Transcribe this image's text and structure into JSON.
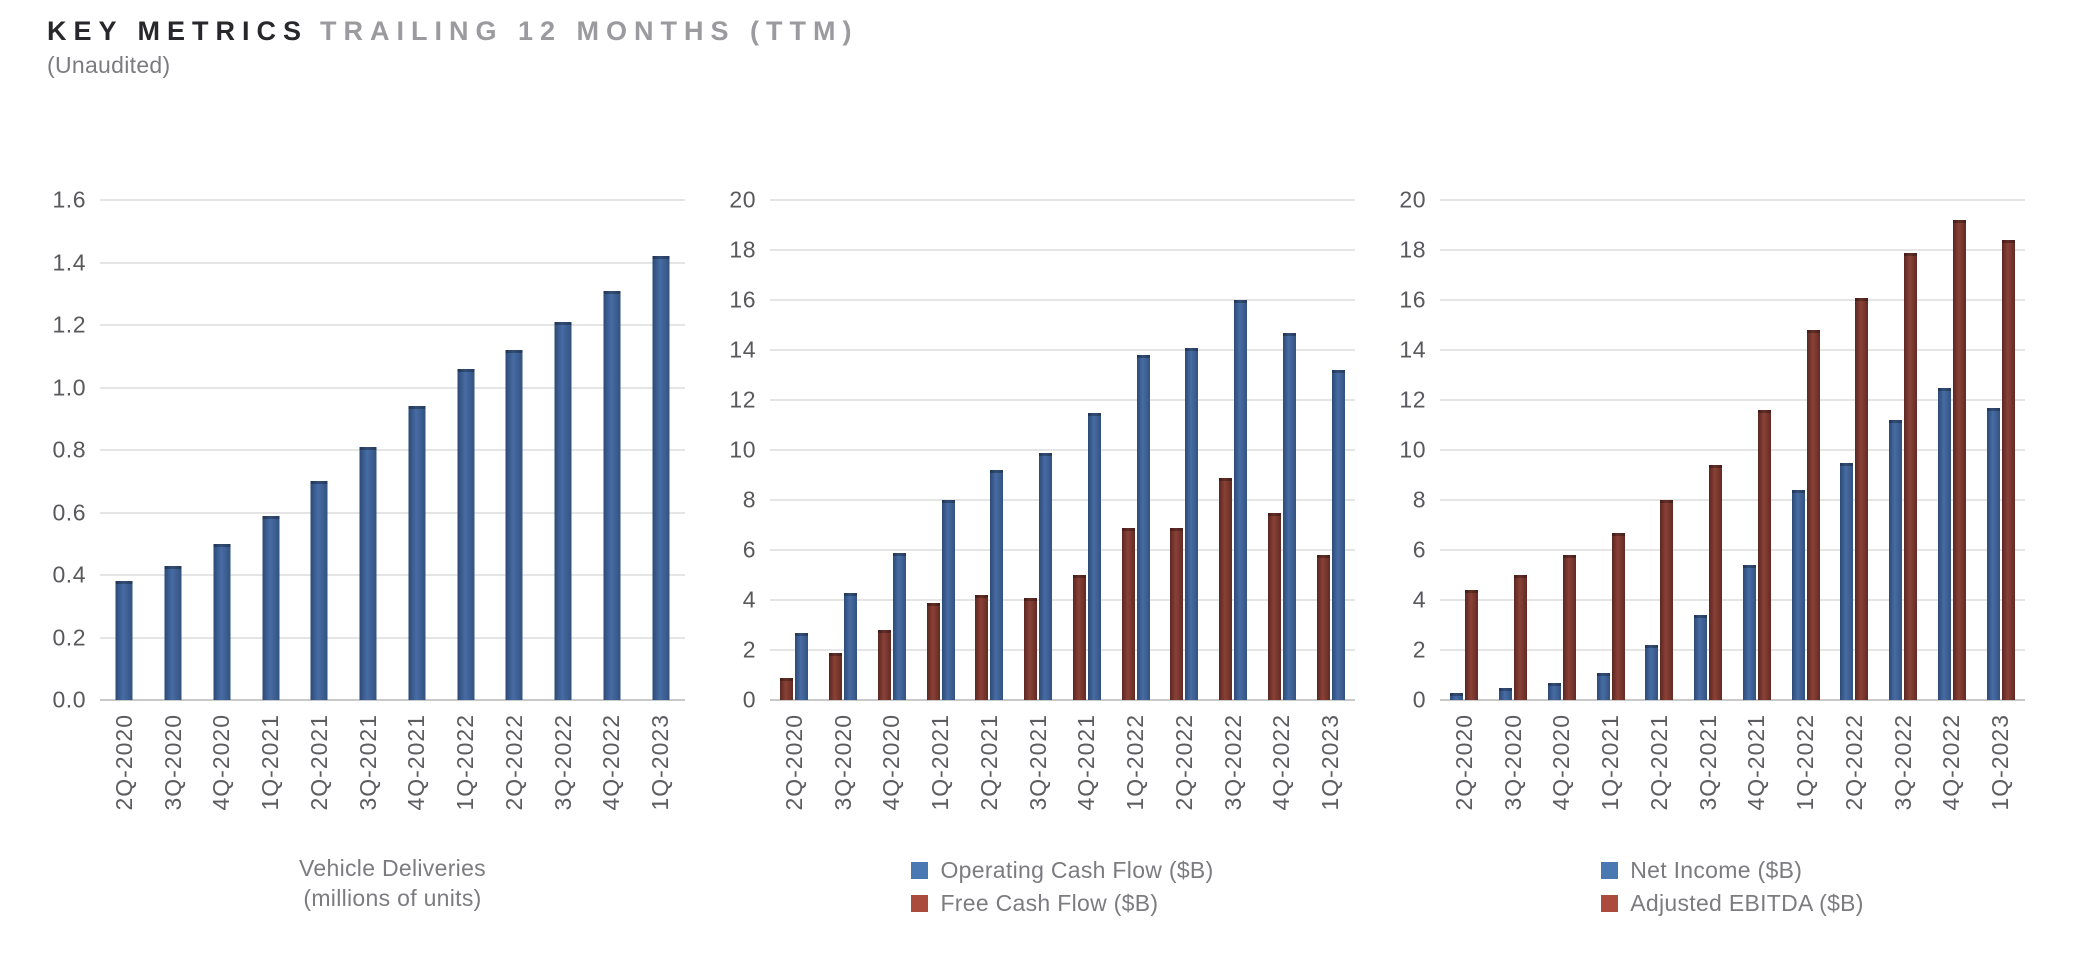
{
  "header": {
    "title_primary": "KEY METRICS",
    "title_secondary": "TRAILING 12 MONTHS (TTM)",
    "subtitle": "(Unaudited)"
  },
  "colors": {
    "blue": {
      "edge": "#2c4a77",
      "mid": "#476ca4",
      "edge2": "#33527f",
      "legend": "#4a78b3"
    },
    "red": {
      "edge": "#5a2721",
      "mid": "#8a4137",
      "edge2": "#622b24",
      "legend": "#ab4b3e"
    },
    "gridline": "#e5e5e5",
    "zero_line": "#c9c9c9",
    "tick_text": "#58585d",
    "muted_text": "#7b7b80"
  },
  "chart_data": [
    {
      "type": "bar",
      "title": "Vehicle Deliveries (millions of units)",
      "categories": [
        "2Q-2020",
        "3Q-2020",
        "4Q-2020",
        "1Q-2021",
        "2Q-2021",
        "3Q-2021",
        "4Q-2021",
        "1Q-2022",
        "2Q-2022",
        "3Q-2022",
        "4Q-2022",
        "1Q-2023"
      ],
      "series": [
        {
          "key": "vehicle-deliveries",
          "name": "Vehicle Deliveries (millions of units)",
          "color": "blue",
          "values": [
            0.38,
            0.43,
            0.5,
            0.59,
            0.7,
            0.81,
            0.94,
            1.06,
            1.12,
            1.21,
            1.31,
            1.42
          ]
        }
      ],
      "bar_order": [
        0
      ],
      "ylim": [
        0,
        1.6
      ],
      "ytick_step": 0.2,
      "ytick_decimals": 1,
      "grid": true,
      "legend_position": "none",
      "xlabel": "",
      "ylabel": "",
      "footer": {
        "kind": "axis-title",
        "lines": [
          "Vehicle Deliveries",
          "(millions of units)"
        ]
      }
    },
    {
      "type": "bar",
      "title": "Operating Cash Flow and Free Cash Flow ($B)",
      "categories": [
        "2Q-2020",
        "3Q-2020",
        "4Q-2020",
        "1Q-2021",
        "2Q-2021",
        "3Q-2021",
        "4Q-2021",
        "1Q-2022",
        "2Q-2022",
        "3Q-2022",
        "4Q-2022",
        "1Q-2023"
      ],
      "series": [
        {
          "key": "operating-cash-flow",
          "name": "Operating Cash Flow ($B)",
          "color": "blue",
          "values": [
            2.7,
            4.3,
            5.9,
            8.0,
            9.2,
            9.9,
            11.5,
            13.8,
            14.1,
            16.0,
            14.7,
            13.2
          ]
        },
        {
          "key": "free-cash-flow",
          "name": "Free Cash Flow ($B)",
          "color": "red",
          "values": [
            0.9,
            1.9,
            2.8,
            3.9,
            4.2,
            4.1,
            5.0,
            6.9,
            6.9,
            8.9,
            7.5,
            5.8
          ]
        }
      ],
      "bar_order": [
        1,
        0
      ],
      "ylim": [
        0,
        20
      ],
      "ytick_step": 2,
      "ytick_decimals": 0,
      "grid": true,
      "legend_position": "bottom",
      "xlabel": "",
      "ylabel": "",
      "footer": {
        "kind": "legend"
      }
    },
    {
      "type": "bar",
      "title": "Net Income and Adjusted EBITDA ($B)",
      "categories": [
        "2Q-2020",
        "3Q-2020",
        "4Q-2020",
        "1Q-2021",
        "2Q-2021",
        "3Q-2021",
        "4Q-2021",
        "1Q-2022",
        "2Q-2022",
        "3Q-2022",
        "4Q-2022",
        "1Q-2023"
      ],
      "series": [
        {
          "key": "net-income",
          "name": "Net Income ($B)",
          "color": "blue",
          "values": [
            0.3,
            0.5,
            0.7,
            1.1,
            2.2,
            3.4,
            5.4,
            8.4,
            9.5,
            11.2,
            12.5,
            11.7
          ]
        },
        {
          "key": "adjusted-ebitda",
          "name": "Adjusted EBITDA ($B)",
          "color": "red",
          "values": [
            4.4,
            5.0,
            5.8,
            6.7,
            8.0,
            9.4,
            11.6,
            14.8,
            16.1,
            17.9,
            19.2,
            18.4
          ]
        }
      ],
      "bar_order": [
        0,
        1
      ],
      "ylim": [
        0,
        20
      ],
      "ytick_step": 2,
      "ytick_decimals": 0,
      "grid": true,
      "legend_position": "bottom",
      "xlabel": "",
      "ylabel": "",
      "footer": {
        "kind": "legend"
      }
    }
  ]
}
